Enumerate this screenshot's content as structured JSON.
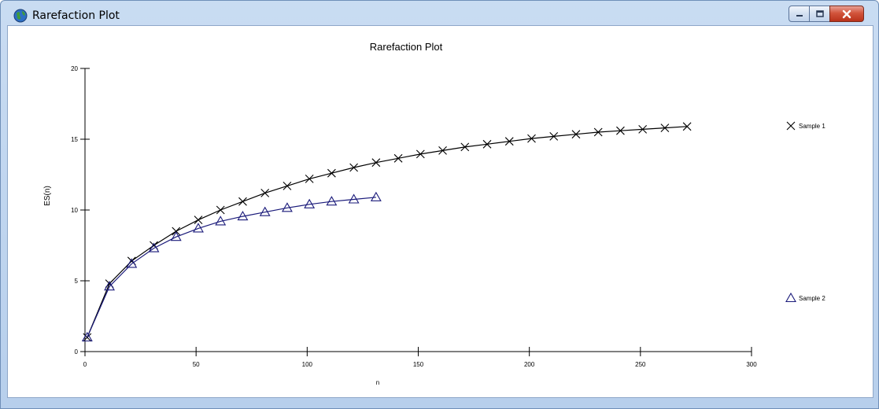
{
  "window": {
    "title": "Rarefaction Plot",
    "icon": "globe-icon",
    "buttons": [
      "minimize-icon",
      "maximize-icon",
      "close-icon"
    ]
  },
  "chart_data": {
    "type": "line",
    "title": "Rarefaction Plot",
    "xlabel": "n",
    "ylabel": "ES(n)",
    "xlim": [
      0,
      300
    ],
    "ylim": [
      0,
      20
    ],
    "xticks": [
      0,
      50,
      100,
      150,
      200,
      250,
      300
    ],
    "yticks": [
      0,
      5,
      10,
      15,
      20
    ],
    "grid": false,
    "legend": "right",
    "series": [
      {
        "name": "Sample 1",
        "marker": "x",
        "color": "#000000",
        "x": [
          1,
          11,
          21,
          31,
          41,
          51,
          61,
          71,
          81,
          91,
          101,
          111,
          121,
          131,
          141,
          151,
          161,
          171,
          181,
          191,
          201,
          211,
          221,
          231,
          241,
          251,
          261,
          271
        ],
        "y": [
          1.0,
          4.8,
          6.4,
          7.5,
          8.5,
          9.3,
          10.0,
          10.6,
          11.2,
          11.7,
          12.2,
          12.6,
          13.0,
          13.35,
          13.65,
          13.95,
          14.2,
          14.45,
          14.65,
          14.85,
          15.05,
          15.2,
          15.35,
          15.5,
          15.6,
          15.7,
          15.8,
          15.9
        ]
      },
      {
        "name": "Sample 2",
        "marker": "triangle",
        "color": "#1a1a7a",
        "x": [
          1,
          11,
          21,
          31,
          41,
          51,
          61,
          71,
          81,
          91,
          101,
          111,
          121,
          131
        ],
        "y": [
          1.0,
          4.6,
          6.2,
          7.3,
          8.1,
          8.7,
          9.2,
          9.55,
          9.85,
          10.15,
          10.4,
          10.6,
          10.75,
          10.9
        ]
      }
    ]
  }
}
